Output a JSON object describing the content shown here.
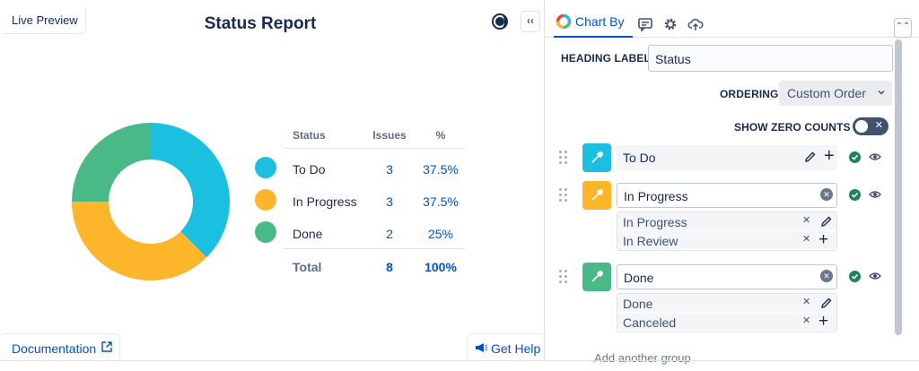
{
  "preview": {
    "live_tab_label": "Live Preview",
    "title": "Status Report",
    "documentation_label": "Documentation",
    "help_label": "Get Help"
  },
  "chart_data": {
    "type": "pie",
    "categories": [
      "To Do",
      "In Progress",
      "Done"
    ],
    "values": [
      3,
      3,
      2
    ],
    "colors": [
      "#1bc0e1",
      "#fdb52b",
      "#49b988"
    ],
    "title": "Status Report"
  },
  "legend": {
    "headers": {
      "status": "Status",
      "issues": "Issues",
      "percent": "%"
    },
    "rows": [
      {
        "label": "To Do",
        "issues": "3",
        "percent": "37.5%",
        "color": "#1bc0e1"
      },
      {
        "label": "In Progress",
        "issues": "3",
        "percent": "37.5%",
        "color": "#fdb52b"
      },
      {
        "label": "Done",
        "issues": "2",
        "percent": "25%",
        "color": "#49b988"
      }
    ],
    "total": {
      "label": "Total",
      "issues": "8",
      "percent": "100%"
    }
  },
  "config": {
    "tab_label": "Chart By",
    "heading_label_field": "HEADING LABEL",
    "heading_value": "Status",
    "ordering_label": "ORDERING",
    "ordering_value": "Custom Order",
    "zero_counts_label": "SHOW ZERO COUNTS",
    "zero_counts_on": false,
    "statuses": [
      {
        "name": "To Do",
        "color": "#1bc0e1",
        "sub": []
      },
      {
        "name": "In Progress",
        "color": "#fdb52b",
        "sub": [
          "In Progress",
          "In Review"
        ]
      },
      {
        "name": "Done",
        "color": "#49b988",
        "sub": [
          "Done",
          "Canceled"
        ]
      }
    ],
    "add_hint": "Add another group"
  },
  "icons": [
    "theme-icon",
    "collapse-icon",
    "external-link-icon",
    "megaphone-icon",
    "chart-ring-icon",
    "comment-icon",
    "gear-icon",
    "cloud-upload-icon",
    "expand-icon",
    "drag-handle-icon",
    "color-picker-icon",
    "pencil-icon",
    "plus-icon",
    "clear-icon",
    "check-icon",
    "eye-icon"
  ]
}
